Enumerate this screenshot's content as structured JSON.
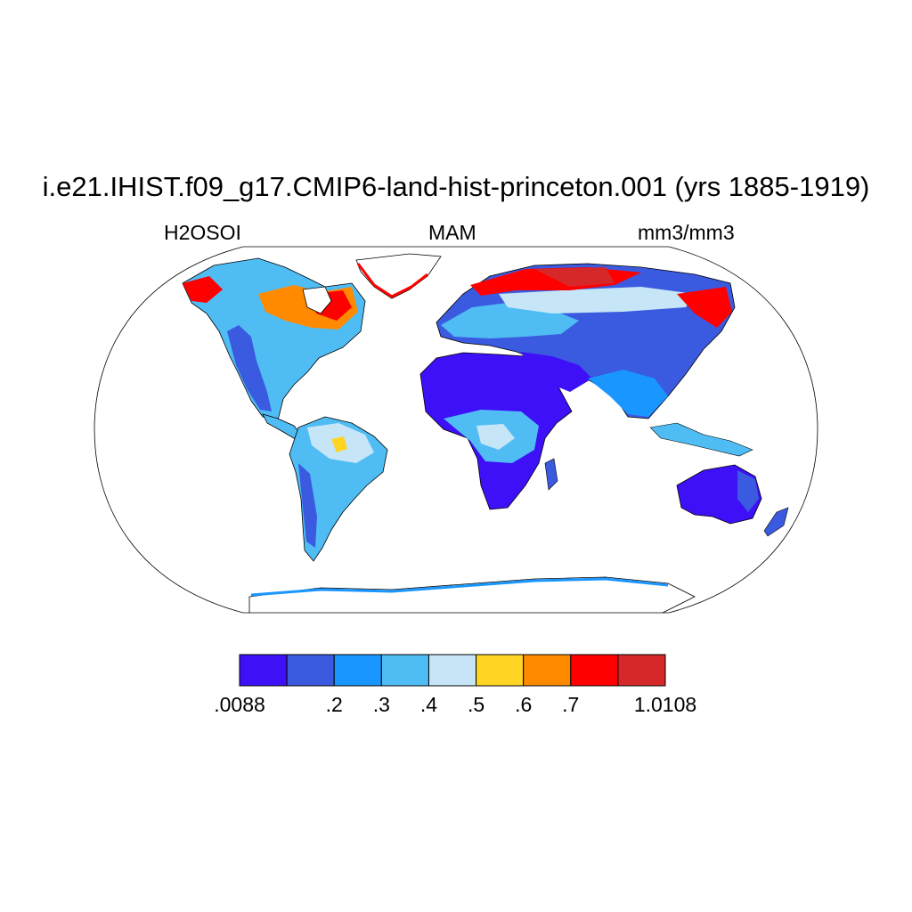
{
  "title": "i.e21.IHIST.f09_g17.CMIP6-land-hist-princeton.001 (yrs 1885-1919)",
  "subtitle_left": "H2OSOI",
  "subtitle_center": "MAM",
  "subtitle_right": "mm3/mm3",
  "colorbar": {
    "colors": [
      "#3e10f8",
      "#3a5ae0",
      "#1996ff",
      "#4fbdf4",
      "#c6e6f8",
      "#ffd423",
      "#ff8a00",
      "#ff0000",
      "#d62828"
    ],
    "labels": [
      ".0088",
      ".2",
      ".3",
      ".4",
      ".5",
      ".6",
      ".7",
      "1.0108"
    ]
  }
}
